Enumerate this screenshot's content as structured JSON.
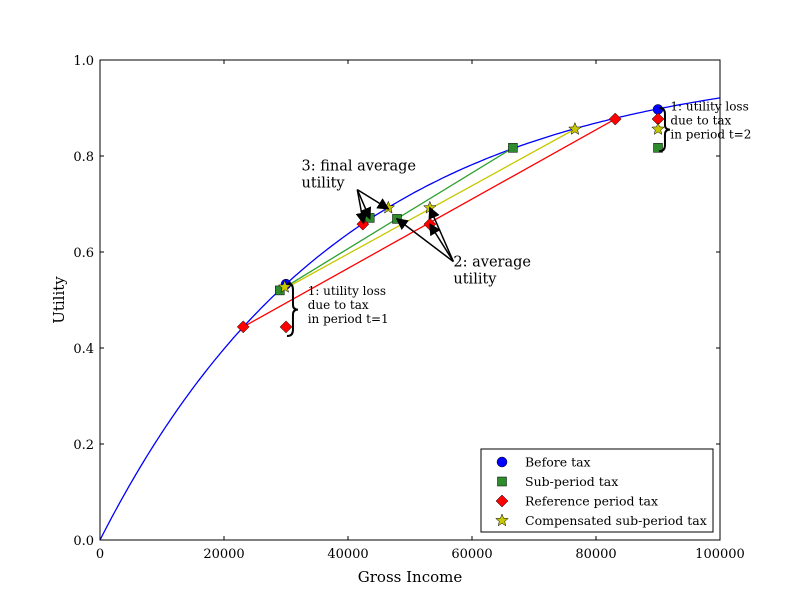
{
  "chart_data": {
    "type": "line",
    "title": "",
    "xlabel": "Gross Income",
    "ylabel": "Utility",
    "xlim": [
      0,
      100000
    ],
    "ylim": [
      0,
      1.0
    ],
    "grid": false,
    "xticks": [
      "0",
      "20000",
      "40000",
      "60000",
      "80000",
      "100000"
    ],
    "xtick_values": [
      0,
      20000,
      40000,
      60000,
      80000,
      100000
    ],
    "yticks": [
      "0.0",
      "0.2",
      "0.4",
      "0.6",
      "0.8",
      "1.0"
    ],
    "ytick_values": [
      0,
      0.2,
      0.4,
      0.6,
      0.8,
      1.0
    ],
    "utility_curve": {
      "formula": "1 - exp(-x/39400)",
      "color": "#0000ff",
      "scale": 39400
    },
    "lines": [
      {
        "name": "sub-period-line",
        "color": "#2ca02c",
        "points": [
          [
            29000,
            0.52
          ],
          [
            66600,
            0.817
          ]
        ]
      },
      {
        "name": "compensated-line",
        "color": "#c8c800",
        "points": [
          [
            30000,
            0.525
          ],
          [
            76600,
            0.856
          ]
        ]
      },
      {
        "name": "reference-line",
        "color": "#ff0000",
        "points": [
          [
            23100,
            0.444
          ],
          [
            83100,
            0.877
          ]
        ]
      }
    ],
    "series": [
      {
        "name": "Before tax",
        "marker": "circle",
        "color": "#0000ff",
        "points": [
          [
            30000,
            0.533
          ],
          [
            90000,
            0.897
          ]
        ]
      },
      {
        "name": "Sub-period tax",
        "marker": "square",
        "color": "#2e8b2e",
        "points": [
          [
            29000,
            0.52
          ],
          [
            66600,
            0.817
          ],
          [
            90000,
            0.817
          ],
          [
            47900,
            0.669
          ],
          [
            43500,
            0.671
          ]
        ]
      },
      {
        "name": "Reference period tax",
        "marker": "diamond",
        "color": "#ff0000",
        "points": [
          [
            23100,
            0.444
          ],
          [
            30000,
            0.444
          ],
          [
            83100,
            0.877
          ],
          [
            90000,
            0.877
          ],
          [
            53200,
            0.658
          ],
          [
            42400,
            0.658
          ]
        ]
      },
      {
        "name": "Compensated sub-period tax",
        "marker": "star",
        "color": "#c8c800",
        "points": [
          [
            29800,
            0.527
          ],
          [
            76600,
            0.856
          ],
          [
            90000,
            0.856
          ],
          [
            53200,
            0.692
          ],
          [
            46500,
            0.692
          ]
        ]
      }
    ],
    "annotations": [
      {
        "lines": [
          "3: final average",
          "utility"
        ],
        "anchor": [
          32500,
          0.77
        ],
        "arrow_from": [
          41500,
          0.73
        ],
        "targets": [
          [
            42500,
            0.66
          ],
          [
            43500,
            0.67
          ],
          [
            46500,
            0.69
          ]
        ]
      },
      {
        "lines": [
          "2: average",
          "utility"
        ],
        "anchor": [
          57000,
          0.57
        ],
        "arrow_from": [
          57000,
          0.58
        ],
        "targets": [
          [
            47900,
            0.669
          ],
          [
            53200,
            0.692
          ],
          [
            53200,
            0.658
          ]
        ]
      },
      {
        "lines": [
          "1: utility loss",
          "due to tax",
          "in period t=1"
        ],
        "anchor": [
          33500,
          0.51
        ],
        "brace": [
          30800,
          0.425,
          0.535
        ]
      },
      {
        "lines": [
          "1: utility loss",
          "due to tax",
          "in period t=2"
        ],
        "anchor": [
          92000,
          0.895
        ],
        "brace": [
          90800,
          0.81,
          0.9
        ]
      }
    ],
    "legend": {
      "placement": "lower-right",
      "entries": [
        "Before tax",
        "Sub-period tax",
        "Reference period tax",
        "Compensated sub-period tax"
      ]
    }
  }
}
